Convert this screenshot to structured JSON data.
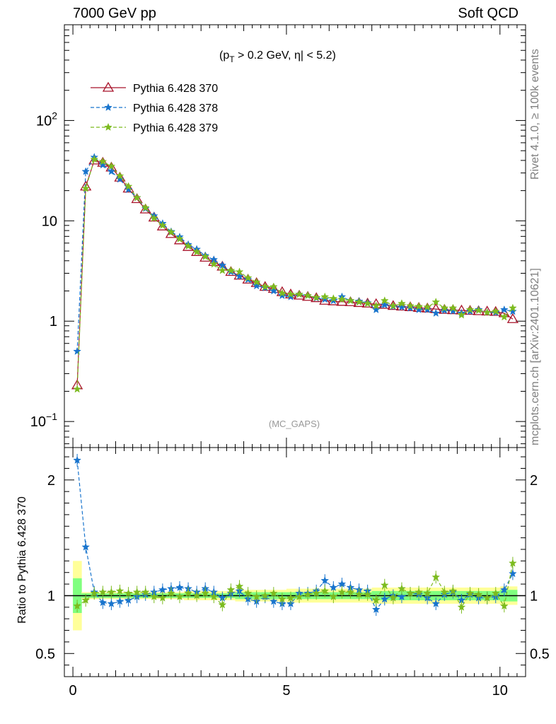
{
  "header": {
    "left": "7000 GeV pp",
    "right": "Soft QCD"
  },
  "side_labels": {
    "top": "Rivet 4.1.0, ≥ 100k events",
    "bottom": "mcplots.cern.ch [arXiv:2401.10621]"
  },
  "colors": {
    "s370": "#a8132a",
    "s378": "#1874cd",
    "s379": "#7cbb1f",
    "band_yellow": "#ffff99",
    "band_green": "#7fff7f"
  },
  "chart_data": [
    {
      "type": "line",
      "scale": "log",
      "title": "(p_T > 0.2 GeV, |η| < 5.2)",
      "title_parts": {
        "p": "(p",
        "sub": "T",
        "rest": " > 0.2 GeV, ",
        "eta": "η",
        "end": "| < 5.2)"
      },
      "watermark": "(MC_GAPS)",
      "xlabel": "",
      "ylabel": "",
      "xlim": [
        -0.2,
        10.6
      ],
      "ylim": [
        0.055,
        900
      ],
      "ytick_labels": [
        {
          "v": 0.1,
          "base": "10",
          "exp": "−1"
        },
        {
          "v": 1,
          "base": "1",
          "exp": ""
        },
        {
          "v": 10,
          "base": "10",
          "exp": ""
        },
        {
          "v": 100,
          "base": "10",
          "exp": "2"
        }
      ],
      "x": [
        0.1,
        0.3,
        0.5,
        0.7,
        0.9,
        1.1,
        1.3,
        1.5,
        1.7,
        1.9,
        2.1,
        2.3,
        2.5,
        2.7,
        2.9,
        3.1,
        3.3,
        3.5,
        3.7,
        3.9,
        4.1,
        4.3,
        4.5,
        4.7,
        4.9,
        5.1,
        5.3,
        5.5,
        5.7,
        5.9,
        6.1,
        6.3,
        6.5,
        6.7,
        6.9,
        7.1,
        7.3,
        7.5,
        7.7,
        7.9,
        8.1,
        8.3,
        8.5,
        8.7,
        8.9,
        9.1,
        9.3,
        9.5,
        9.7,
        9.9,
        10.1,
        10.3
      ],
      "series": [
        {
          "name": "Pythia 6.428 370",
          "color": "#a8132a",
          "style": "solid",
          "marker": "triangle",
          "values": [
            0.23,
            22,
            40,
            38,
            34,
            27,
            21,
            16.5,
            13,
            10.8,
            8.8,
            7.4,
            6.4,
            5.5,
            4.9,
            4.3,
            3.9,
            3.5,
            3.1,
            2.85,
            2.6,
            2.4,
            2.2,
            2.1,
            1.95,
            1.85,
            1.8,
            1.75,
            1.7,
            1.6,
            1.58,
            1.56,
            1.55,
            1.52,
            1.5,
            1.48,
            1.46,
            1.42,
            1.4,
            1.38,
            1.36,
            1.34,
            1.32,
            1.3,
            1.29,
            1.28,
            1.27,
            1.26,
            1.25,
            1.24,
            1.2,
            1.05
          ]
        },
        {
          "name": "Pythia 6.428 378",
          "color": "#1874cd",
          "style": "dashed",
          "marker": "star",
          "values": [
            0.5,
            31,
            43,
            36,
            31,
            26,
            20.5,
            17,
            13.3,
            11.2,
            9.4,
            7.8,
            6.9,
            5.8,
            5.2,
            4.5,
            4.1,
            3.6,
            3.1,
            2.8,
            2.6,
            2.25,
            2.15,
            2.0,
            1.8,
            1.75,
            1.85,
            1.8,
            1.7,
            1.65,
            1.6,
            1.75,
            1.6,
            1.58,
            1.52,
            1.3,
            1.45,
            1.4,
            1.38,
            1.35,
            1.3,
            1.3,
            1.2,
            1.28,
            1.26,
            1.2,
            1.25,
            1.3,
            1.22,
            1.22,
            1.3,
            1.25
          ]
        },
        {
          "name": "Pythia 6.428 379",
          "color": "#7cbb1f",
          "style": "dashed",
          "marker": "star",
          "values": [
            0.21,
            21,
            41,
            39,
            35,
            28,
            22,
            17,
            13.5,
            10.6,
            9.0,
            7.7,
            6.6,
            5.6,
            4.9,
            4.4,
            3.7,
            3.2,
            3.2,
            3.1,
            2.7,
            2.45,
            2.2,
            2.2,
            1.9,
            1.85,
            1.85,
            1.8,
            1.72,
            1.75,
            1.68,
            1.65,
            1.6,
            1.55,
            1.5,
            1.42,
            1.6,
            1.42,
            1.5,
            1.42,
            1.4,
            1.38,
            1.55,
            1.35,
            1.35,
            1.15,
            1.3,
            1.28,
            1.22,
            1.25,
            1.1,
            1.35
          ]
        }
      ]
    },
    {
      "type": "line",
      "scale": "linear",
      "title": "",
      "xlabel": "",
      "ylabel": "Ratio to Pythia 6.428 370",
      "xlim": [
        -0.2,
        10.6
      ],
      "ylim": [
        0.3,
        2.28
      ],
      "xtick_labels": [
        {
          "v": 0,
          "label": "0"
        },
        {
          "v": 5,
          "label": "5"
        },
        {
          "v": 10,
          "label": "10"
        }
      ],
      "ytick_labels": [
        {
          "v": 0.5,
          "label": "0.5"
        },
        {
          "v": 1,
          "label": "1"
        },
        {
          "v": 2,
          "label": "2"
        }
      ],
      "x": [
        0.1,
        0.3,
        0.5,
        0.7,
        0.9,
        1.1,
        1.3,
        1.5,
        1.7,
        1.9,
        2.1,
        2.3,
        2.5,
        2.7,
        2.9,
        3.1,
        3.3,
        3.5,
        3.7,
        3.9,
        4.1,
        4.3,
        4.5,
        4.7,
        4.9,
        5.1,
        5.3,
        5.5,
        5.7,
        5.9,
        6.1,
        6.3,
        6.5,
        6.7,
        6.9,
        7.1,
        7.3,
        7.5,
        7.7,
        7.9,
        8.1,
        8.3,
        8.5,
        8.7,
        8.9,
        9.1,
        9.3,
        9.5,
        9.7,
        9.9,
        10.1,
        10.3
      ],
      "band_green": [
        0.15,
        0.02,
        0.02,
        0.02,
        0.02,
        0.02,
        0.02,
        0.02,
        0.02,
        0.02,
        0.02,
        0.02,
        0.02,
        0.02,
        0.02,
        0.02,
        0.02,
        0.02,
        0.02,
        0.03,
        0.03,
        0.03,
        0.03,
        0.03,
        0.03,
        0.03,
        0.03,
        0.03,
        0.03,
        0.03,
        0.03,
        0.03,
        0.03,
        0.03,
        0.03,
        0.04,
        0.04,
        0.04,
        0.04,
        0.04,
        0.04,
        0.04,
        0.04,
        0.04,
        0.04,
        0.04,
        0.04,
        0.04,
        0.04,
        0.04,
        0.05,
        0.05
      ],
      "band_yellow": [
        0.3,
        0.03,
        0.03,
        0.03,
        0.03,
        0.03,
        0.03,
        0.03,
        0.03,
        0.03,
        0.03,
        0.03,
        0.03,
        0.04,
        0.04,
        0.04,
        0.04,
        0.04,
        0.04,
        0.05,
        0.05,
        0.05,
        0.05,
        0.05,
        0.05,
        0.06,
        0.06,
        0.06,
        0.06,
        0.06,
        0.06,
        0.06,
        0.06,
        0.06,
        0.06,
        0.07,
        0.07,
        0.07,
        0.07,
        0.07,
        0.07,
        0.07,
        0.07,
        0.07,
        0.07,
        0.07,
        0.07,
        0.07,
        0.07,
        0.07,
        0.08,
        0.08
      ],
      "series": [
        {
          "name": "Pythia 6.428 370",
          "color": "#000000",
          "style": "solid",
          "marker": "none",
          "values": [
            1,
            1,
            1,
            1,
            1,
            1,
            1,
            1,
            1,
            1,
            1,
            1,
            1,
            1,
            1,
            1,
            1,
            1,
            1,
            1,
            1,
            1,
            1,
            1,
            1,
            1,
            1,
            1,
            1,
            1,
            1,
            1,
            1,
            1,
            1,
            1,
            1,
            1,
            1,
            1,
            1,
            1,
            1,
            1,
            1,
            1,
            1,
            1,
            1,
            1,
            1,
            1
          ]
        },
        {
          "name": "Pythia 6.428 378",
          "color": "#1874cd",
          "style": "dashed",
          "marker": "star",
          "values": [
            2.17,
            1.42,
            1.03,
            0.94,
            0.93,
            0.95,
            0.96,
            0.99,
            1.01,
            1.03,
            1.05,
            1.06,
            1.07,
            1.06,
            1.03,
            1.06,
            1.03,
            0.98,
            1.02,
            1.04,
            0.97,
            0.95,
            0.99,
            0.95,
            0.93,
            0.93,
            1.02,
            1.02,
            1.04,
            1.13,
            1.07,
            1.1,
            1.07,
            1.05,
            1.04,
            0.88,
            0.97,
            1.0,
            0.99,
            1.02,
            1.01,
            0.98,
            0.93,
            1.01,
            1.03,
            0.96,
            1.01,
            0.98,
            0.98,
            0.99,
            1.05,
            1.19
          ]
        },
        {
          "name": "Pythia 6.428 379",
          "color": "#7cbb1f",
          "style": "dashed",
          "marker": "star",
          "values": [
            0.91,
            0.96,
            1.02,
            1.03,
            1.03,
            1.04,
            1.02,
            1.03,
            1.03,
            0.99,
            0.98,
            1.02,
            0.99,
            1.02,
            1.0,
            1.02,
            0.99,
            0.92,
            1.05,
            1.08,
            1.02,
            0.99,
            1.0,
            1.02,
            0.97,
            0.98,
            0.99,
            1.01,
            1.02,
            1.04,
            0.99,
            1.03,
            1.03,
            1.01,
            1.01,
            0.96,
            1.09,
            0.98,
            1.06,
            1.02,
            1.03,
            1.02,
            1.16,
            1.03,
            1.04,
            0.9,
            1.02,
            1.01,
            0.98,
            1.02,
            0.91,
            1.28
          ]
        }
      ]
    }
  ]
}
